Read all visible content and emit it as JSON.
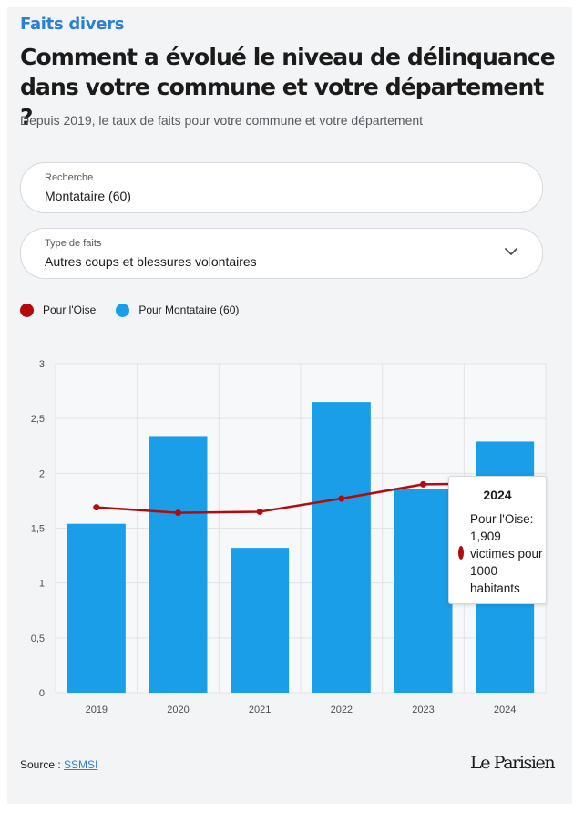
{
  "header": {
    "kicker": "Faits divers",
    "title": "Comment a évolué le niveau de délinquance dans votre commune et votre département ?",
    "subtitle": "Depuis 2019, le taux de faits pour votre commune et votre département"
  },
  "search": {
    "label": "Recherche",
    "value": "Montataire (60)"
  },
  "type_select": {
    "label": "Type de faits",
    "value": "Autres coups et blessures volontaires",
    "icon": "chevron-down-icon"
  },
  "legend": {
    "items": [
      {
        "label": "Pour l'Oise",
        "color": "#b30b0b"
      },
      {
        "label": "Pour Montataire (60)",
        "color": "#1a9ee8"
      }
    ]
  },
  "chart_data": {
    "type": "bar",
    "categories": [
      "2019",
      "2020",
      "2021",
      "2022",
      "2023",
      "2024"
    ],
    "series": [
      {
        "name": "Pour Montataire (60)",
        "type": "bar",
        "color": "#1a9ee8",
        "values": [
          1.54,
          2.34,
          1.32,
          2.65,
          1.86,
          2.29
        ]
      },
      {
        "name": "Pour l'Oise",
        "type": "line",
        "color": "#b30b0b",
        "values": [
          1.69,
          1.64,
          1.65,
          1.77,
          1.9,
          1.909
        ]
      }
    ],
    "yticks": [
      "0",
      "0,5",
      "1",
      "1,5",
      "2",
      "2,5",
      "3"
    ],
    "ylim": [
      0,
      3
    ],
    "grid": true,
    "title": "",
    "xlabel": "",
    "ylabel": ""
  },
  "tooltip": {
    "year": "2024",
    "text": "Pour l'Oise: 1,909 victimes pour 1000 habitants",
    "color": "#b30b0b"
  },
  "footer": {
    "source_prefix": "Source : ",
    "source_link": "SSMSI",
    "brand": "Le Parisien"
  }
}
